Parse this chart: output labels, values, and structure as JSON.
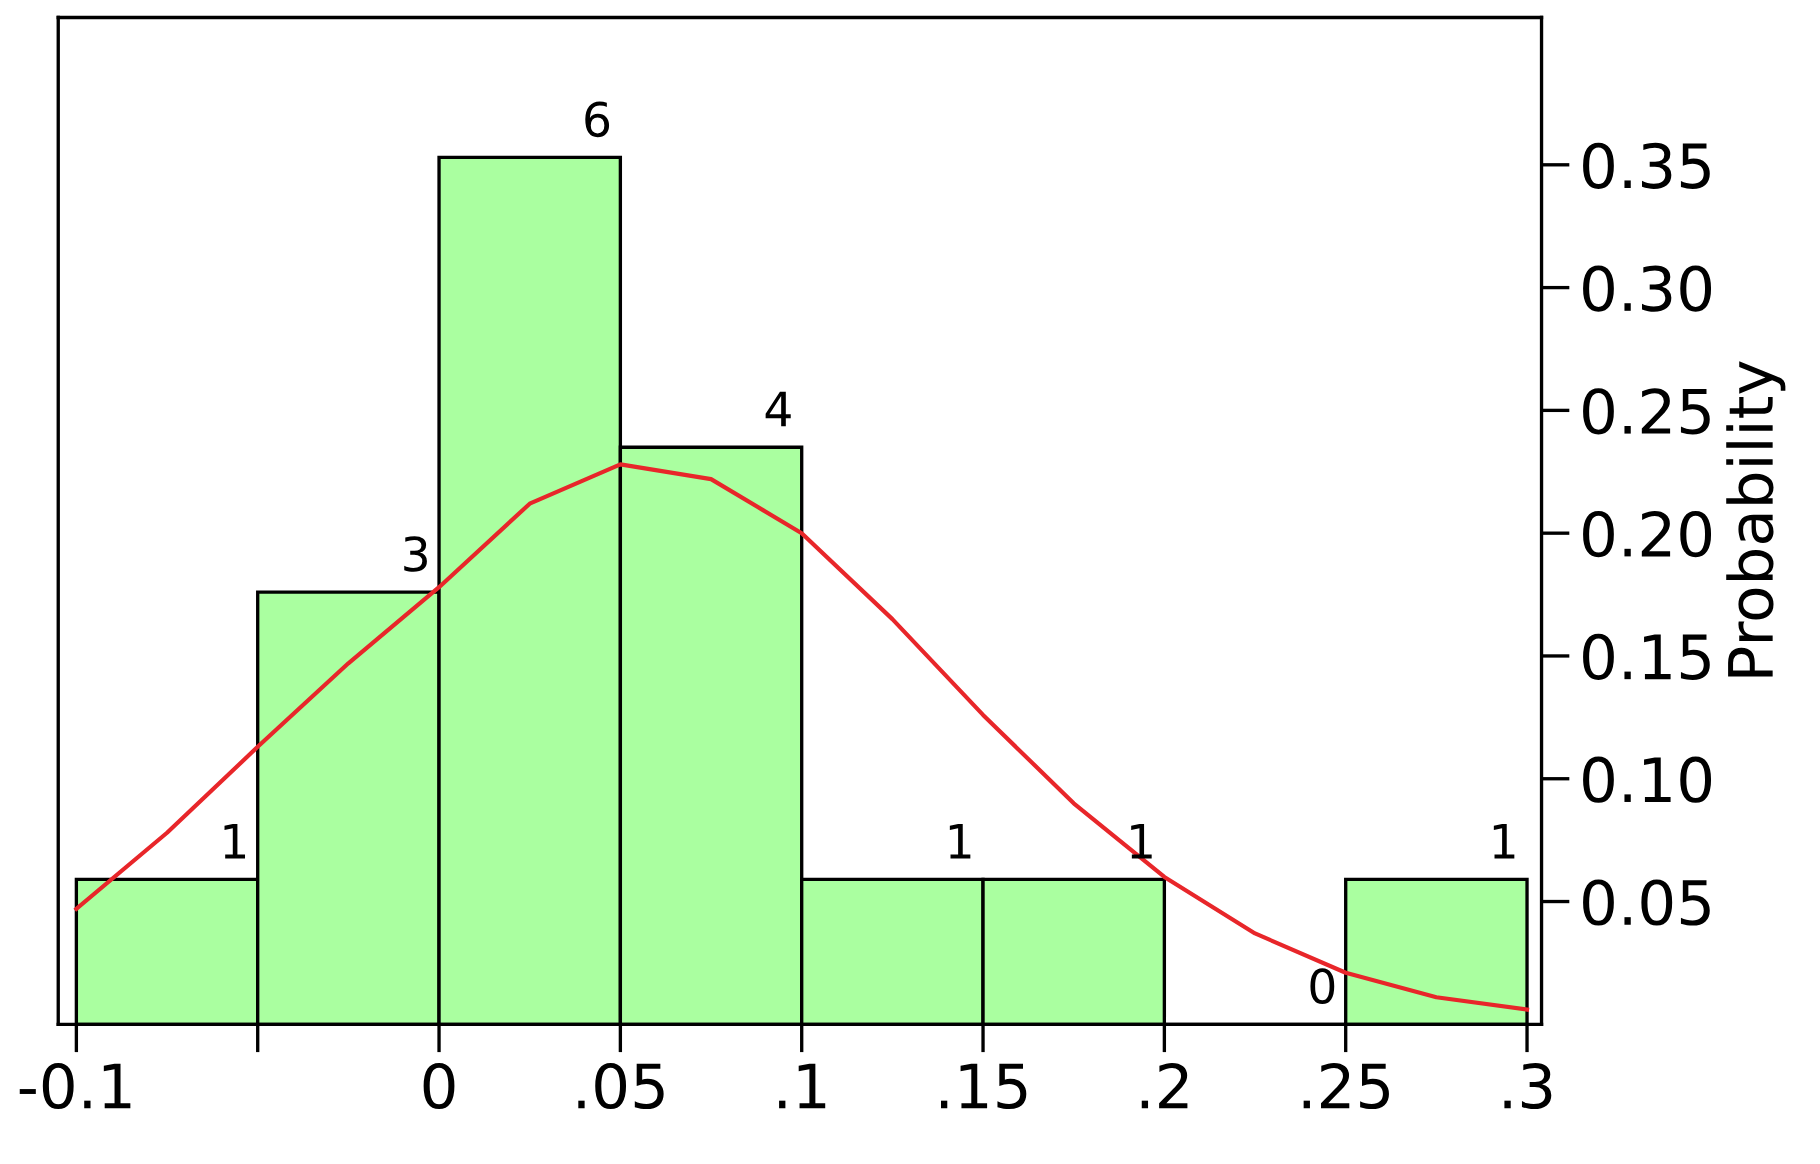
{
  "chart_data": {
    "type": "histogram",
    "ylabel": "Probability",
    "bins": [
      -0.1,
      -0.05,
      0,
      0.05,
      0.1,
      0.15,
      0.2,
      0.25,
      0.3
    ],
    "values": [
      0.059,
      0.176,
      0.353,
      0.235,
      0.059,
      0.059,
      0,
      0.059
    ],
    "annotations": [
      {
        "text": "1",
        "x": -0.05,
        "y": 0.059
      },
      {
        "text": "3",
        "x": 0,
        "y": 0.176
      },
      {
        "text": "6",
        "x": 0.05,
        "y": 0.353
      },
      {
        "text": "4",
        "x": 0.1,
        "y": 0.235
      },
      {
        "text": "1",
        "x": 0.15,
        "y": 0.059
      },
      {
        "text": "1",
        "x": 0.2,
        "y": 0.059
      },
      {
        "text": "0",
        "x": 0.25,
        "y": 0
      },
      {
        "text": "1",
        "x": 0.3,
        "y": 0.059
      }
    ],
    "color": "#aaffa0",
    "series": [
      {
        "type": "line",
        "color": "#e8262a",
        "x": [
          -0.1,
          -0.075,
          -0.05,
          -0.025,
          0,
          0.025,
          0.05,
          0.075,
          0.1,
          0.125,
          0.15,
          0.175,
          0.2,
          0.225,
          0.25,
          0.275,
          0.3
        ],
        "values": [
          0.047,
          0.078,
          0.113,
          0.147,
          0.178,
          0.212,
          0.228,
          0.222,
          0.2,
          0.165,
          0.126,
          0.09,
          0.06,
          0.037,
          0.021,
          0.011,
          0.006
        ]
      }
    ],
    "xlim": [
      -0.105,
      0.304
    ],
    "ylim": [
      0,
      0.41
    ],
    "xticks": [
      {
        "value": -0.1,
        "label": "-0.1"
      },
      {
        "value": -0.05,
        "label": null
      },
      0,
      {
        "value": 0.05,
        "label": ".05"
      },
      {
        "value": 0.1,
        "label": ".1"
      },
      {
        "value": 0.15,
        "label": ".15"
      },
      {
        "value": 0.2,
        "label": ".2"
      },
      {
        "value": 0.25,
        "label": ".25"
      },
      {
        "value": 0.3,
        "label": ".3"
      }
    ],
    "yticks": [
      0.05,
      {
        "value": 0.1,
        "label": "0.10"
      },
      0.15,
      {
        "value": 0.2,
        "label": "0.20"
      },
      0.25,
      {
        "value": 0.3,
        "label": "0.30"
      },
      0.35
    ],
    "grid": false
  }
}
